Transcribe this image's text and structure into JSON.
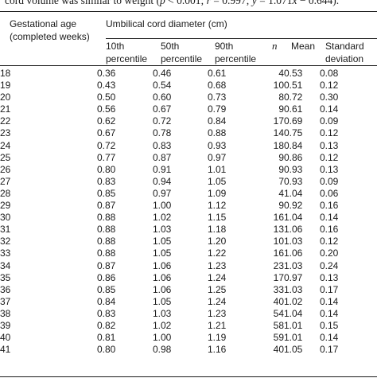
{
  "caption_cut": {
    "lead": "cord volume was similar to weight (",
    "p_sym": "p",
    "p_rel": " < 0.001; ",
    "r_sym": "r",
    "r_val": " = 0.997; ",
    "y_sym": "y",
    "eq": " = 1.071",
    "x_sym": "x",
    "tail": " − 0.644)."
  },
  "headers": {
    "age": [
      "Gestational age",
      "(completed weeks)"
    ],
    "diameter_group": "Umbilical cord diameter (cm)",
    "p10": [
      "10th",
      "percentile"
    ],
    "p50": [
      "50th",
      "percentile"
    ],
    "p90": [
      "90th",
      "percentile"
    ],
    "n": "n",
    "mean": "Mean",
    "sd": [
      "Standard",
      "deviation"
    ]
  },
  "rows": [
    {
      "age": "18",
      "p10": "0.36",
      "p50": "0.46",
      "p90": "0.61",
      "n": "4",
      "mean": "0.53",
      "sd": "0.08"
    },
    {
      "age": "19",
      "p10": "0.43",
      "p50": "0.54",
      "p90": "0.68",
      "n": "10",
      "mean": "0.51",
      "sd": "0.12"
    },
    {
      "age": "20",
      "p10": "0.50",
      "p50": "0.60",
      "p90": "0.73",
      "n": "8",
      "mean": "0.72",
      "sd": "0.30"
    },
    {
      "age": "21",
      "p10": "0.56",
      "p50": "0.67",
      "p90": "0.79",
      "n": "9",
      "mean": "0.61",
      "sd": "0.14"
    },
    {
      "age": "22",
      "p10": "0.62",
      "p50": "0.72",
      "p90": "0.84",
      "n": "17",
      "mean": "0.69",
      "sd": "0.09"
    },
    {
      "age": "23",
      "p10": "0.67",
      "p50": "0.78",
      "p90": "0.88",
      "n": "14",
      "mean": "0.75",
      "sd": "0.12"
    },
    {
      "age": "24",
      "p10": "0.72",
      "p50": "0.83",
      "p90": "0.93",
      "n": "18",
      "mean": "0.84",
      "sd": "0.13"
    },
    {
      "age": "25",
      "p10": "0.77",
      "p50": "0.87",
      "p90": "0.97",
      "n": "9",
      "mean": "0.86",
      "sd": "0.12"
    },
    {
      "age": "26",
      "p10": "0.80",
      "p50": "0.91",
      "p90": "1.01",
      "n": "9",
      "mean": "0.93",
      "sd": "0.13"
    },
    {
      "age": "27",
      "p10": "0.83",
      "p50": "0.94",
      "p90": "1.05",
      "n": "7",
      "mean": "0.93",
      "sd": "0.09"
    },
    {
      "age": "28",
      "p10": "0.85",
      "p50": "0.97",
      "p90": "1.09",
      "n": "4",
      "mean": "1.04",
      "sd": "0.06"
    },
    {
      "age": "29",
      "p10": "0.87",
      "p50": "1.00",
      "p90": "1.12",
      "n": "9",
      "mean": "0.92",
      "sd": "0.16"
    },
    {
      "age": "30",
      "p10": "0.88",
      "p50": "1.02",
      "p90": "1.15",
      "n": "16",
      "mean": "1.04",
      "sd": "0.14"
    },
    {
      "age": "31",
      "p10": "0.88",
      "p50": "1.03",
      "p90": "1.18",
      "n": "13",
      "mean": "1.06",
      "sd": "0.16"
    },
    {
      "age": "32",
      "p10": "0.88",
      "p50": "1.05",
      "p90": "1.20",
      "n": "10",
      "mean": "1.03",
      "sd": "0.12"
    },
    {
      "age": "33",
      "p10": "0.88",
      "p50": "1.05",
      "p90": "1.22",
      "n": "16",
      "mean": "1.06",
      "sd": "0.20"
    },
    {
      "age": "34",
      "p10": "0.87",
      "p50": "1.06",
      "p90": "1.23",
      "n": "23",
      "mean": "1.03",
      "sd": "0.24"
    },
    {
      "age": "35",
      "p10": "0.86",
      "p50": "1.06",
      "p90": "1.24",
      "n": "17",
      "mean": "0.97",
      "sd": "0.13"
    },
    {
      "age": "36",
      "p10": "0.85",
      "p50": "1.06",
      "p90": "1.25",
      "n": "33",
      "mean": "1.03",
      "sd": "0.17"
    },
    {
      "age": "37",
      "p10": "0.84",
      "p50": "1.05",
      "p90": "1.24",
      "n": "40",
      "mean": "1.02",
      "sd": "0.14"
    },
    {
      "age": "38",
      "p10": "0.83",
      "p50": "1.03",
      "p90": "1.23",
      "n": "54",
      "mean": "1.04",
      "sd": "0.14"
    },
    {
      "age": "39",
      "p10": "0.82",
      "p50": "1.02",
      "p90": "1.21",
      "n": "58",
      "mean": "1.01",
      "sd": "0.15"
    },
    {
      "age": "40",
      "p10": "0.81",
      "p50": "1.00",
      "p90": "1.19",
      "n": "59",
      "mean": "1.01",
      "sd": "0.14"
    },
    {
      "age": "41",
      "p10": "0.80",
      "p50": "0.98",
      "p90": "1.16",
      "n": "40",
      "mean": "1.05",
      "sd": "0.17"
    }
  ]
}
